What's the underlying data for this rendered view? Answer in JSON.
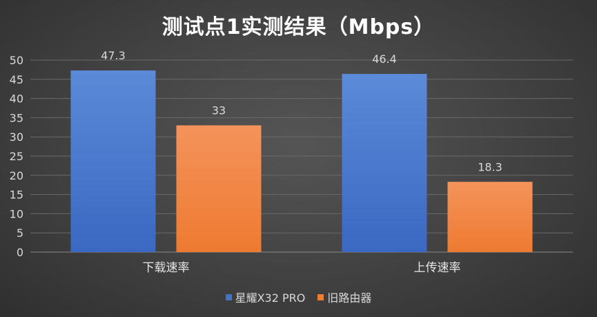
{
  "chart_data": {
    "type": "bar",
    "title": "测试点1实测结果（Mbps）",
    "categories": [
      "下载速率",
      "上传速率"
    ],
    "series": [
      {
        "name": "星耀X32 PRO",
        "values": [
          47.3,
          46.4
        ],
        "labels": [
          "47.3",
          "46.4"
        ],
        "color_top": "#5b8ad8",
        "color_bottom": "#3a68c2"
      },
      {
        "name": "旧路由器",
        "values": [
          33,
          18.3
        ],
        "labels": [
          "33",
          "18.3"
        ],
        "color_top": "#f4935c",
        "color_bottom": "#ee7a30"
      }
    ],
    "ylim": [
      0,
      50
    ],
    "yticks": [
      "0",
      "5",
      "10",
      "15",
      "20",
      "25",
      "30",
      "35",
      "40",
      "45",
      "50"
    ],
    "grid": true,
    "legend_position": "bottom"
  },
  "legend": {
    "items": [
      {
        "label": "星耀X32 PRO",
        "color": "#4472c4"
      },
      {
        "label": "旧路由器",
        "color": "#ed7d31"
      }
    ]
  }
}
